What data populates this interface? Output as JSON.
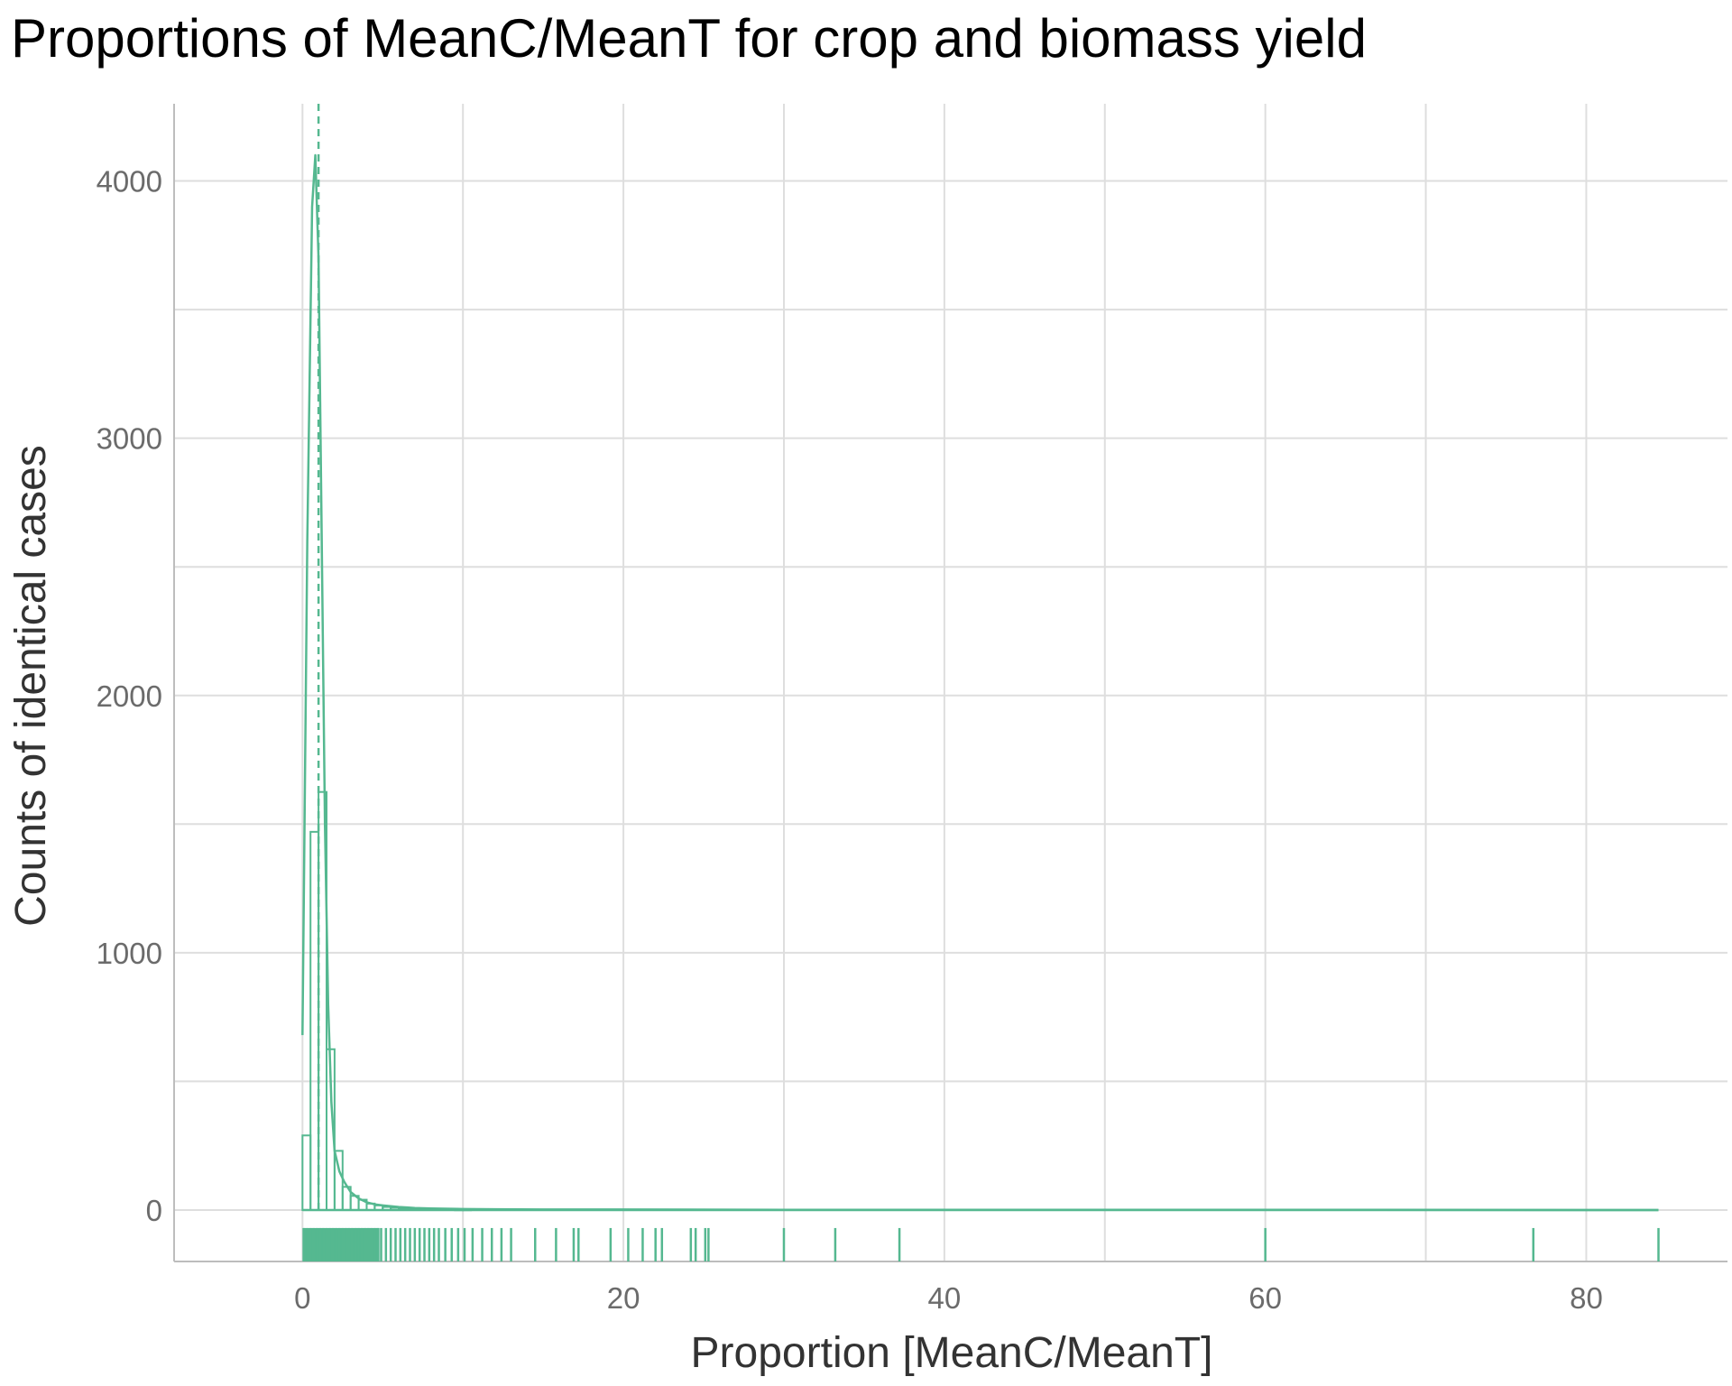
{
  "chart_data": {
    "type": "histogram",
    "title": "Proportions of MeanC/MeanT for crop and biomass yield",
    "xlabel": "Proportion [MeanC/MeanT]",
    "ylabel": "Counts of identical cases",
    "xlim": [
      -8,
      88.8
    ],
    "ylim": [
      -200,
      4300
    ],
    "x_ticks": [
      0,
      20,
      40,
      60,
      80
    ],
    "y_ticks": [
      0,
      1000,
      2000,
      3000,
      4000
    ],
    "x_minor_grid": [
      10,
      30,
      50,
      70
    ],
    "y_minor_grid": [
      500,
      1500,
      2500,
      3500
    ],
    "grid": true,
    "color": "#55b890",
    "reference_line": {
      "x": 1.0,
      "style": "dashed"
    },
    "histogram": {
      "bin_width": 0.5,
      "bins": [
        {
          "x0": 0.0,
          "count": 290
        },
        {
          "x0": 0.5,
          "count": 1470
        },
        {
          "x0": 1.0,
          "count": 1625
        },
        {
          "x0": 1.5,
          "count": 625
        },
        {
          "x0": 2.0,
          "count": 230
        },
        {
          "x0": 2.5,
          "count": 90
        },
        {
          "x0": 3.0,
          "count": 55
        },
        {
          "x0": 3.5,
          "count": 40
        },
        {
          "x0": 4.0,
          "count": 25
        },
        {
          "x0": 4.5,
          "count": 18
        },
        {
          "x0": 5.0,
          "count": 12
        },
        {
          "x0": 5.5,
          "count": 9
        },
        {
          "x0": 6.0,
          "count": 7
        },
        {
          "x0": 6.5,
          "count": 5
        },
        {
          "x0": 7.0,
          "count": 4
        },
        {
          "x0": 7.5,
          "count": 3
        },
        {
          "x0": 8.0,
          "count": 3
        },
        {
          "x0": 8.5,
          "count": 2
        },
        {
          "x0": 9.0,
          "count": 2
        },
        {
          "x0": 9.5,
          "count": 1
        },
        {
          "x0": 10.0,
          "count": 1
        }
      ],
      "x_end": 84.5
    },
    "density_curve": {
      "x": [
        0.0,
        0.3,
        0.6,
        0.8,
        1.0,
        1.2,
        1.4,
        1.6,
        1.8,
        2.0,
        2.3,
        2.6,
        3.0,
        3.5,
        4.0,
        4.5,
        5.0,
        5.5,
        6.0,
        6.5,
        7.0,
        8.0,
        10.0,
        12.0,
        15.0,
        20.0,
        30.0,
        40.0,
        60.0,
        80.0,
        84.5
      ],
      "y": [
        680,
        2600,
        3900,
        4100,
        3700,
        2600,
        1500,
        800,
        420,
        230,
        150,
        110,
        70,
        45,
        30,
        22,
        18,
        15,
        12,
        10,
        8,
        6,
        4,
        3,
        2,
        2,
        1,
        1,
        1,
        0,
        0
      ]
    },
    "rug": [
      0.1,
      0.3,
      0.5,
      0.7,
      0.9,
      1.1,
      1.3,
      1.5,
      1.7,
      1.9,
      2.1,
      2.3,
      2.5,
      2.7,
      2.9,
      3.1,
      3.3,
      3.5,
      3.7,
      3.9,
      4.1,
      4.3,
      4.5,
      4.7,
      4.9,
      5.2,
      5.5,
      5.8,
      6.1,
      6.4,
      6.7,
      7.0,
      7.3,
      7.6,
      7.9,
      8.2,
      8.5,
      8.9,
      9.3,
      9.7,
      10.1,
      10.6,
      11.2,
      11.8,
      12.4,
      13.0,
      14.5,
      15.8,
      16.9,
      17.2,
      19.2,
      20.3,
      21.2,
      22.0,
      22.4,
      24.2,
      24.5,
      25.1,
      25.3,
      30.0,
      33.2,
      37.2,
      60.0,
      76.7,
      84.5
    ]
  }
}
